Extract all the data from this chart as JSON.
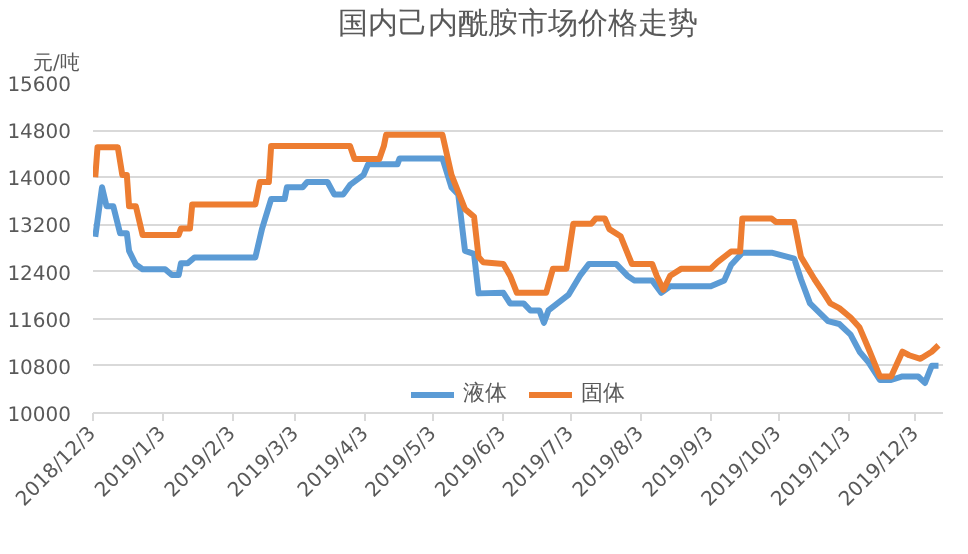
{
  "chart_data": {
    "type": "line",
    "title": "国内己内酰胺市场价格走势",
    "ylabel": "元/吨",
    "ylim": [
      10000,
      15600
    ],
    "yticks": [
      10000,
      10800,
      11600,
      12400,
      13200,
      14000,
      14800,
      15600
    ],
    "xlim": [
      "2018-12-03",
      "2019-12-15"
    ],
    "xticks": [
      {
        "value": "2018-12-03",
        "label": "2018/12/3"
      },
      {
        "value": "2019-01-03",
        "label": "2019/1/3"
      },
      {
        "value": "2019-02-03",
        "label": "2019/2/3"
      },
      {
        "value": "2019-03-03",
        "label": "2019/3/3"
      },
      {
        "value": "2019-04-03",
        "label": "2019/4/3"
      },
      {
        "value": "2019-05-03",
        "label": "2019/5/3"
      },
      {
        "value": "2019-06-03",
        "label": "2019/6/3"
      },
      {
        "value": "2019-07-03",
        "label": "2019/7/3"
      },
      {
        "value": "2019-08-03",
        "label": "2019/8/3"
      },
      {
        "value": "2019-09-03",
        "label": "2019/9/3"
      },
      {
        "value": "2019-10-03",
        "label": "2019/10/3"
      },
      {
        "value": "2019-11-03",
        "label": "2019/11/3"
      },
      {
        "value": "2019-12-03",
        "label": "2019/12/3"
      }
    ],
    "grid": "y",
    "legend": "bottom",
    "marker": "none",
    "line_style": "solid",
    "series": [
      {
        "name": "液体",
        "color": "#5b9bd5",
        "x": [
          "2018-12-04",
          "2018-12-07",
          "2018-12-09",
          "2018-12-12",
          "2018-12-15",
          "2018-12-18",
          "2018-12-19",
          "2018-12-22",
          "2018-12-25",
          "2019-01-04",
          "2019-01-07",
          "2019-01-10",
          "2019-01-11",
          "2019-01-14",
          "2019-01-17",
          "2019-02-13",
          "2019-02-16",
          "2019-02-20",
          "2019-02-26",
          "2019-02-27",
          "2019-03-06",
          "2019-03-08",
          "2019-03-17",
          "2019-03-20",
          "2019-03-24",
          "2019-03-27",
          "2019-04-02",
          "2019-04-04",
          "2019-04-17",
          "2019-04-18",
          "2019-05-07",
          "2019-05-11",
          "2019-05-14",
          "2019-05-17",
          "2019-05-21",
          "2019-05-23",
          "2019-06-03",
          "2019-06-06",
          "2019-06-12",
          "2019-06-15",
          "2019-06-19",
          "2019-06-21",
          "2019-06-23",
          "2019-07-02",
          "2019-07-07",
          "2019-07-11",
          "2019-07-23",
          "2019-07-28",
          "2019-07-31",
          "2019-08-08",
          "2019-08-12",
          "2019-08-16",
          "2019-09-03",
          "2019-09-09",
          "2019-09-12",
          "2019-09-17",
          "2019-09-30",
          "2019-10-10",
          "2019-10-13",
          "2019-10-17",
          "2019-10-25",
          "2019-10-30",
          "2019-11-04",
          "2019-11-08",
          "2019-11-12",
          "2019-11-17",
          "2019-11-22",
          "2019-11-27",
          "2019-12-04",
          "2019-12-07",
          "2019-12-10",
          "2019-12-13"
        ],
        "values": [
          12990,
          13830,
          13510,
          13510,
          13050,
          13050,
          12750,
          12520,
          12440,
          12440,
          12340,
          12340,
          12540,
          12540,
          12640,
          12640,
          13130,
          13630,
          13630,
          13830,
          13830,
          13920,
          13920,
          13710,
          13710,
          13870,
          14040,
          14220,
          14220,
          14320,
          14320,
          13830,
          13710,
          12750,
          12700,
          12030,
          12040,
          11860,
          11860,
          11740,
          11740,
          11530,
          11740,
          12010,
          12330,
          12530,
          12530,
          12330,
          12250,
          12250,
          12040,
          12150,
          12150,
          12250,
          12510,
          12720,
          12720,
          12620,
          12270,
          11860,
          11560,
          11510,
          11330,
          11040,
          10860,
          10560,
          10560,
          10620,
          10620,
          10510,
          10800,
          10800
        ]
      },
      {
        "name": "固体",
        "color": "#ed7d31",
        "x": [
          "2018-12-04",
          "2018-12-05",
          "2018-12-14",
          "2018-12-16",
          "2018-12-18",
          "2018-12-19",
          "2018-12-22",
          "2018-12-25",
          "2019-01-10",
          "2019-01-11",
          "2019-01-15",
          "2019-01-16",
          "2019-02-13",
          "2019-02-15",
          "2019-02-19",
          "2019-02-20",
          "2019-03-27",
          "2019-03-29",
          "2019-04-09",
          "2019-04-11",
          "2019-04-12",
          "2019-05-07",
          "2019-05-11",
          "2019-05-17",
          "2019-05-21",
          "2019-05-23",
          "2019-05-25",
          "2019-06-03",
          "2019-06-06",
          "2019-06-09",
          "2019-06-22",
          "2019-06-25",
          "2019-07-01",
          "2019-07-04",
          "2019-07-12",
          "2019-07-14",
          "2019-07-18",
          "2019-07-20",
          "2019-07-25",
          "2019-07-30",
          "2019-08-08",
          "2019-08-10",
          "2019-08-13",
          "2019-08-16",
          "2019-08-21",
          "2019-09-03",
          "2019-09-06",
          "2019-09-12",
          "2019-09-16",
          "2019-09-17",
          "2019-09-30",
          "2019-10-02",
          "2019-10-10",
          "2019-10-13",
          "2019-10-19",
          "2019-10-23",
          "2019-10-26",
          "2019-10-30",
          "2019-11-04",
          "2019-11-08",
          "2019-11-12",
          "2019-11-17",
          "2019-11-22",
          "2019-11-27",
          "2019-11-30",
          "2019-12-05",
          "2019-12-10",
          "2019-12-13"
        ],
        "values": [
          14000,
          14510,
          14510,
          14040,
          14040,
          13510,
          13510,
          13020,
          13020,
          13130,
          13130,
          13540,
          13540,
          13920,
          13920,
          14530,
          14530,
          14310,
          14310,
          14530,
          14720,
          14720,
          14040,
          13460,
          13330,
          12650,
          12560,
          12530,
          12330,
          12040,
          12040,
          12450,
          12450,
          13210,
          13210,
          13300,
          13300,
          13120,
          13000,
          12530,
          12530,
          12330,
          12090,
          12330,
          12450,
          12450,
          12560,
          12740,
          12740,
          13300,
          13300,
          13240,
          13240,
          12650,
          12270,
          12040,
          11860,
          11780,
          11620,
          11450,
          11090,
          10620,
          10620,
          11040,
          10980,
          10920,
          11040,
          11150
        ]
      }
    ]
  }
}
